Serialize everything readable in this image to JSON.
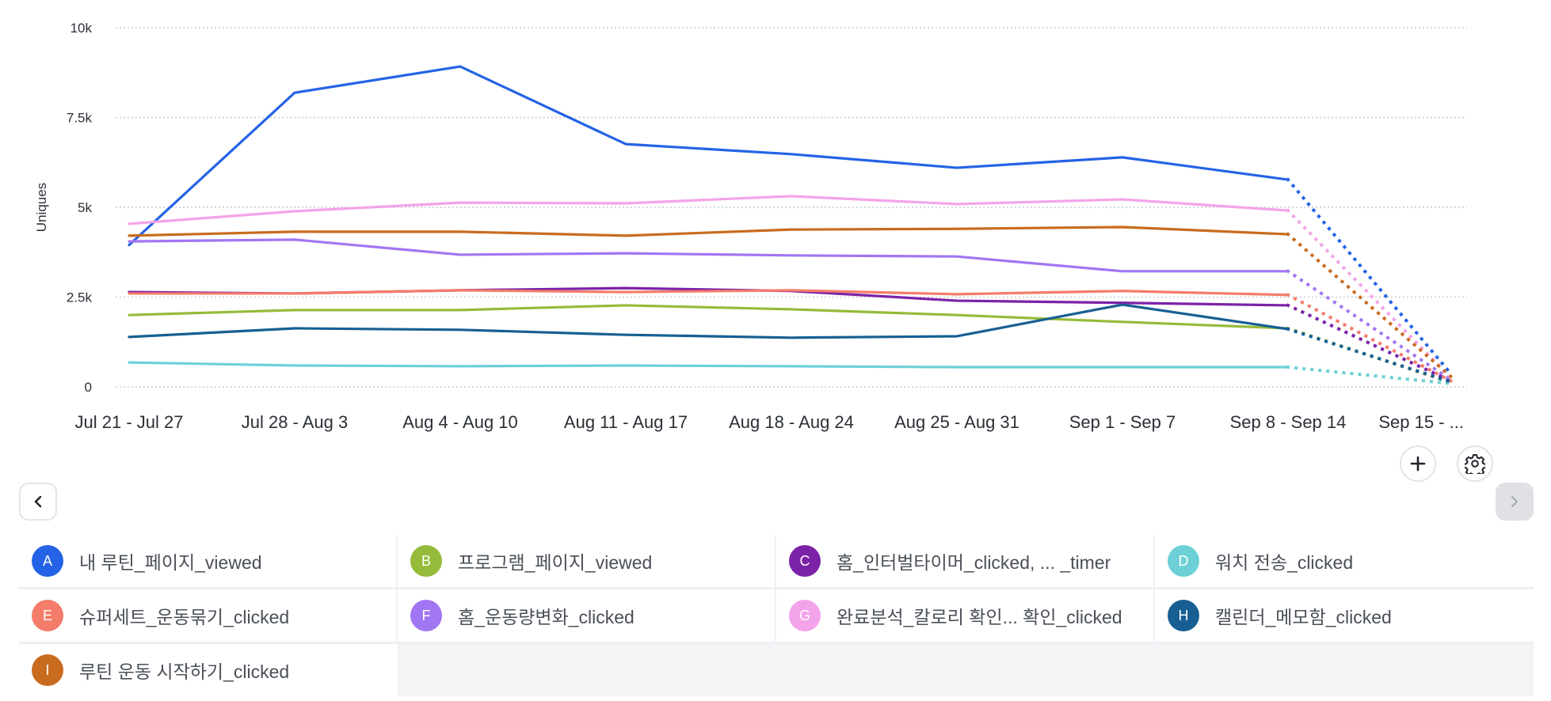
{
  "chart_data": {
    "type": "line",
    "title": "",
    "xlabel": "",
    "ylabel": "Uniques",
    "ylim": [
      0,
      10000
    ],
    "yticks": [
      0,
      2500,
      5000,
      7500,
      10000
    ],
    "ytick_labels": [
      "0",
      "2.5k",
      "5k",
      "7.5k",
      "10k"
    ],
    "grid": true,
    "legend_position": "bottom",
    "categories": [
      "Jul 21 - Jul 27",
      "Jul 28 - Aug 3",
      "Aug 4 - Aug 10",
      "Aug 11 - Aug 17",
      "Aug 18 - Aug 24",
      "Aug 25 - Aug 31",
      "Sep 1 - Sep 7",
      "Sep 8 - Sep 14",
      "Sep 15 - ..."
    ],
    "incomplete_last_period": true,
    "series": [
      {
        "key": "A",
        "name": "내 루틴_페이지_viewed",
        "color": "#2563e6",
        "values": [
          3950,
          8190,
          8920,
          6760,
          6480,
          6100,
          6390,
          5770,
          330
        ]
      },
      {
        "key": "B",
        "name": "프로그램_페이지_viewed",
        "color": "#95bb3a",
        "values": [
          2000,
          2140,
          2140,
          2270,
          2160,
          2000,
          1810,
          1630,
          110
        ]
      },
      {
        "key": "C",
        "name": "홈_인터벌타이머_clicked, ...  _timer",
        "color": "#7b22a8",
        "values": [
          2640,
          2600,
          2690,
          2750,
          2670,
          2400,
          2340,
          2270,
          150
        ]
      },
      {
        "key": "D",
        "name": "워치 전송_clicked",
        "color": "#6dd0d6",
        "values": [
          680,
          595,
          575,
          595,
          575,
          550,
          550,
          550,
          90
        ]
      },
      {
        "key": "E",
        "name": "슈퍼세트_운동묶기_clicked",
        "color": "#f47c6a",
        "values": [
          2600,
          2600,
          2690,
          2640,
          2690,
          2580,
          2670,
          2560,
          150
        ]
      },
      {
        "key": "F",
        "name": "홈_운동량변화_clicked",
        "color": "#a176f2",
        "values": [
          4050,
          4100,
          3680,
          3720,
          3660,
          3630,
          3220,
          3220,
          180
        ]
      },
      {
        "key": "G",
        "name": "완료분석_칼로리 확인... 확인_clicked",
        "color": "#f3a3ea",
        "values": [
          4540,
          4890,
          5130,
          5110,
          5310,
          5090,
          5220,
          4910,
          220
        ]
      },
      {
        "key": "H",
        "name": "캘린더_메모함_clicked",
        "color": "#175f93",
        "values": [
          1390,
          1630,
          1590,
          1450,
          1370,
          1410,
          2290,
          1610,
          130
        ]
      },
      {
        "key": "I",
        "name": "루틴 운동 시작하기_clicked",
        "color": "#c96b1f",
        "values": [
          4210,
          4320,
          4320,
          4210,
          4380,
          4400,
          4450,
          4250,
          260
        ]
      }
    ]
  },
  "controls": {
    "add_icon": "plus-icon",
    "settings_icon": "gear-icon",
    "prev_icon": "chevron-left-icon",
    "next_icon": "chevron-right-icon"
  },
  "legend": {
    "rows": [
      [
        "A",
        "B",
        "C",
        "D"
      ],
      [
        "E",
        "F",
        "G",
        "H"
      ],
      [
        "I"
      ]
    ]
  }
}
